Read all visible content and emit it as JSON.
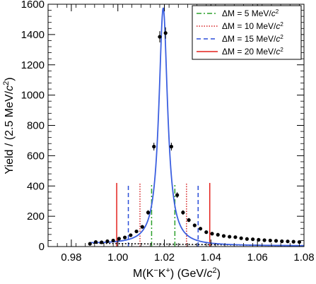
{
  "chart_data": {
    "type": "scatter",
    "title": "",
    "xlabel_parts": [
      "M(K",
      "−",
      "K",
      "+",
      ") (GeV/",
      "c",
      "2",
      ")"
    ],
    "ylabel_parts": [
      "Yield / (2.5 MeV/",
      "c",
      "2",
      ")"
    ],
    "xlim": [
      0.97,
      1.08
    ],
    "ylim": [
      0,
      1600
    ],
    "x_ticks": [
      0.98,
      1.0,
      1.02,
      1.04,
      1.06,
      1.08
    ],
    "x_tick_labels": [
      "0.98",
      "1.00",
      "1.02",
      "1.04",
      "1.06",
      "1.08"
    ],
    "y_ticks": [
      0,
      200,
      400,
      600,
      800,
      1000,
      1200,
      1400,
      1600
    ],
    "y_tick_labels": [
      "0",
      "200",
      "400",
      "600",
      "800",
      "1000",
      "1200",
      "1400",
      "1600"
    ],
    "grid": false,
    "legend_position": "top-right",
    "colors": {
      "fit_curve": "#3b5fe0",
      "background_curve": "#000000",
      "points": "#000000",
      "window_5": "#2ca02c",
      "window_10": "#d62728",
      "window_15": "#2b4fd8",
      "window_20": "#e4211c"
    },
    "legend": [
      {
        "label": "ΔM = 5 MeV/c²",
        "prefix": "ΔM = 5 MeV/",
        "c": "c",
        "exp": "2",
        "color": "#2ca02c",
        "style": "dashdot"
      },
      {
        "label": "ΔM = 10 MeV/c²",
        "prefix": "ΔM = 10 MeV/",
        "c": "c",
        "exp": "2",
        "color": "#d62728",
        "style": "dotted"
      },
      {
        "label": "ΔM = 15 MeV/c²",
        "prefix": "ΔM = 15 MeV/",
        "c": "c",
        "exp": "2",
        "color": "#2b4fd8",
        "style": "dashed"
      },
      {
        "label": "ΔM = 20 MeV/c²",
        "prefix": "ΔM = 20 MeV/",
        "c": "c",
        "exp": "2",
        "color": "#e4211c",
        "style": "solid"
      }
    ],
    "points": [
      {
        "x": 0.988,
        "y": 18
      },
      {
        "x": 0.9905,
        "y": 30
      },
      {
        "x": 0.993,
        "y": 28
      },
      {
        "x": 0.9955,
        "y": 35
      },
      {
        "x": 0.998,
        "y": 40
      },
      {
        "x": 1.0005,
        "y": 52
      },
      {
        "x": 1.003,
        "y": 60
      },
      {
        "x": 1.0055,
        "y": 75
      },
      {
        "x": 1.008,
        "y": 100
      },
      {
        "x": 1.0105,
        "y": 130
      },
      {
        "x": 1.013,
        "y": 225
      },
      {
        "x": 1.0155,
        "y": 660
      },
      {
        "x": 1.018,
        "y": 1385
      },
      {
        "x": 1.0205,
        "y": 1410
      },
      {
        "x": 1.023,
        "y": 660
      },
      {
        "x": 1.0255,
        "y": 340
      },
      {
        "x": 1.028,
        "y": 225
      },
      {
        "x": 1.0305,
        "y": 175
      },
      {
        "x": 1.033,
        "y": 140
      },
      {
        "x": 1.0355,
        "y": 118
      },
      {
        "x": 1.038,
        "y": 95
      },
      {
        "x": 1.0405,
        "y": 85
      },
      {
        "x": 1.043,
        "y": 78
      },
      {
        "x": 1.0455,
        "y": 70
      },
      {
        "x": 1.048,
        "y": 65
      },
      {
        "x": 1.0505,
        "y": 62
      },
      {
        "x": 1.053,
        "y": 55
      },
      {
        "x": 1.0555,
        "y": 50
      },
      {
        "x": 1.058,
        "y": 48
      },
      {
        "x": 1.0605,
        "y": 45
      },
      {
        "x": 1.063,
        "y": 42
      },
      {
        "x": 1.0655,
        "y": 40
      },
      {
        "x": 1.068,
        "y": 38
      },
      {
        "x": 1.0705,
        "y": 35
      },
      {
        "x": 1.073,
        "y": 34
      },
      {
        "x": 1.0755,
        "y": 32
      },
      {
        "x": 1.078,
        "y": 30
      }
    ],
    "signal_fit": {
      "mean": 1.0195,
      "width": 0.0045,
      "peak": 1570,
      "background": {
        "a": 18,
        "b": 3.5
      }
    },
    "background_fit": {
      "x0": 0.988,
      "y0": 22,
      "x1": 1.08,
      "y1": 5
    },
    "windows": [
      {
        "delta": 5,
        "low": 1.0145,
        "high": 1.0245,
        "height": 420,
        "color": "#2ca02c",
        "style": "dashdot"
      },
      {
        "delta": 10,
        "low": 1.0095,
        "high": 1.0295,
        "height": 420,
        "color": "#d62728",
        "style": "dotted"
      },
      {
        "delta": 15,
        "low": 1.0045,
        "high": 1.0345,
        "height": 420,
        "color": "#2b4fd8",
        "style": "dashed"
      },
      {
        "delta": 20,
        "low": 0.9995,
        "high": 1.0395,
        "height": 420,
        "color": "#e4211c",
        "style": "solid"
      }
    ]
  }
}
